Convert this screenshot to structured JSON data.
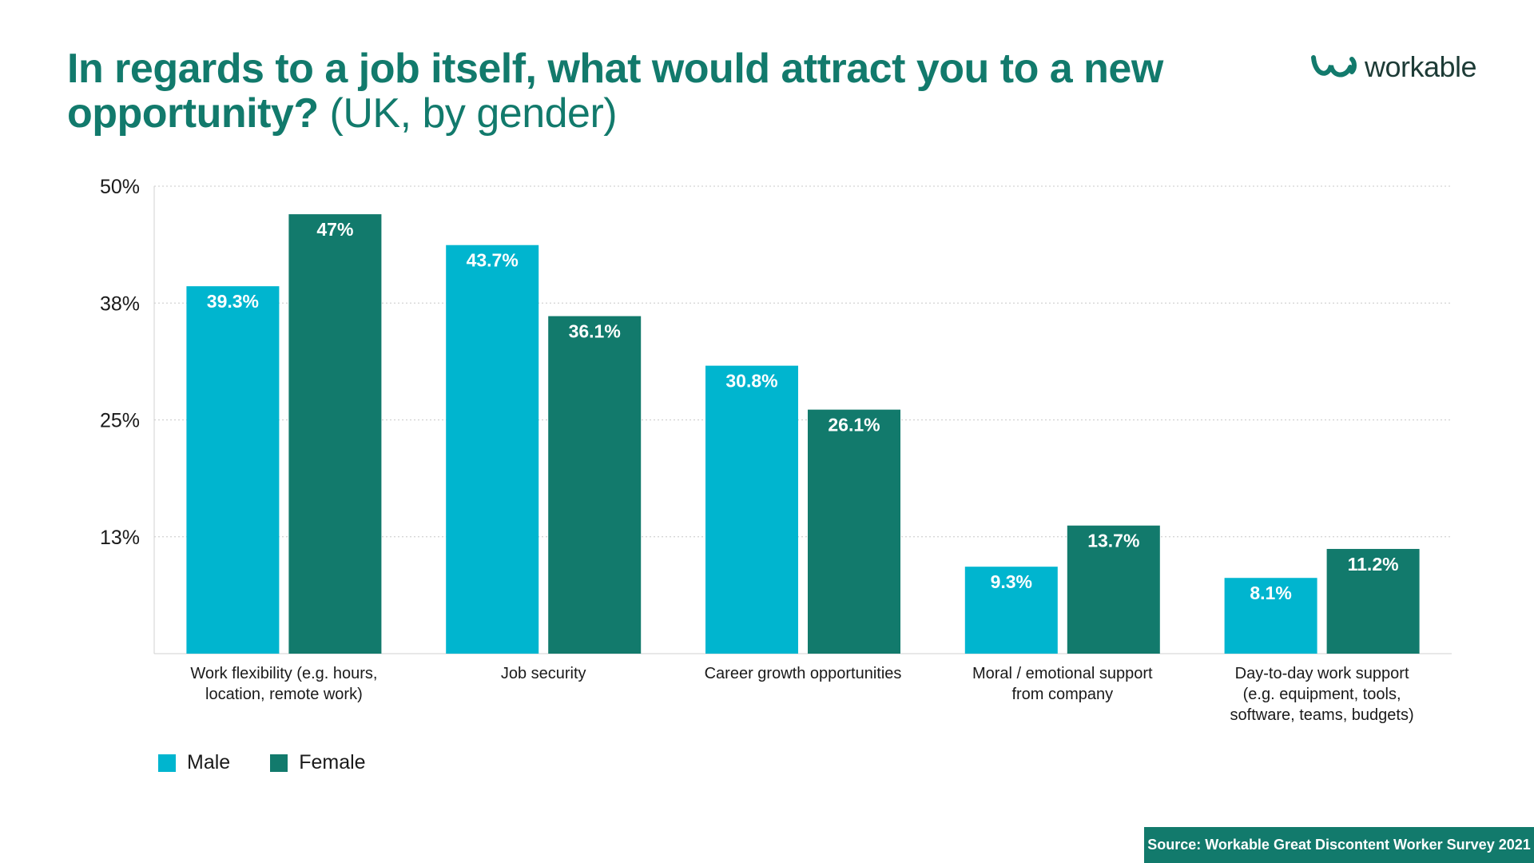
{
  "title": {
    "bold": "In regards to a job itself, what would attract you to a new opportunity?",
    "light": " (UK, by gender)"
  },
  "logo": {
    "text": "workable",
    "icon": "workable-logo-icon",
    "color": "#127a6c"
  },
  "source": "Source: Workable Great Discontent Worker Survey 2021",
  "colors": {
    "male": "#00b5cf",
    "female": "#127a6c",
    "title": "#127a6c"
  },
  "chart_data": {
    "type": "bar",
    "title": "In regards to a job itself, what would attract you to a new opportunity? (UK, by gender)",
    "categories": [
      "Work flexibility (e.g. hours,\nlocation, remote work)",
      "Job security",
      "Career growth opportunities",
      "Moral / emotional support\nfrom company",
      "Day-to-day work support\n(e.g. equipment, tools,\nsoftware, teams, budgets)"
    ],
    "series": [
      {
        "name": "Male",
        "values": [
          39.3,
          43.7,
          30.8,
          9.3,
          8.1
        ],
        "labels": [
          "39.3%",
          "43.7%",
          "30.8%",
          "9.3%",
          "8.1%"
        ]
      },
      {
        "name": "Female",
        "values": [
          47,
          36.1,
          26.1,
          13.7,
          11.2
        ],
        "labels": [
          "47%",
          "36.1%",
          "26.1%",
          "13.7%",
          "11.2%"
        ]
      }
    ],
    "yticks": [
      12.5,
      25,
      37.5,
      50
    ],
    "ytick_labels": [
      "13%",
      "25%",
      "38%",
      "50%"
    ],
    "ylim": [
      0,
      50
    ],
    "xlabel": "",
    "ylabel": "",
    "grid": true,
    "legend": "bottom-left"
  }
}
